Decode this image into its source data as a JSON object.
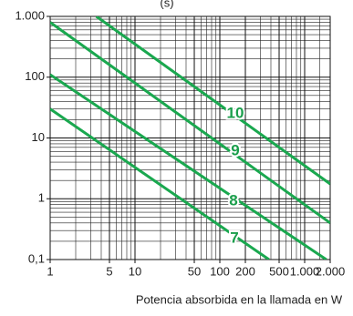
{
  "chart_data": {
    "type": "line",
    "ylabel": "(s)",
    "xlabel": "Potencia absorbida en la llamada en W",
    "log_x": true,
    "log_y": true,
    "grid": true,
    "xlim": [
      1,
      2000
    ],
    "ylim": [
      0.1,
      1000
    ],
    "xticks": [
      1,
      5,
      10,
      50,
      100,
      200,
      500,
      {
        "value": 1000,
        "label": "1.000"
      },
      {
        "value": 2000,
        "label": "2.000"
      }
    ],
    "yticks": [
      {
        "value": 0.1,
        "label": "0,1"
      },
      1,
      10,
      100,
      {
        "value": 1000,
        "label": "1.000"
      }
    ],
    "xgrid": [
      2,
      3,
      4,
      6,
      7,
      8,
      9,
      20,
      30,
      40,
      60,
      70,
      80,
      90,
      300,
      400,
      600,
      700,
      800,
      900,
      1500
    ],
    "ygrid": [
      0.2,
      0.3,
      0.4,
      0.5,
      0.6,
      0.7,
      0.8,
      0.9,
      2,
      3,
      4,
      5,
      6,
      7,
      8,
      9,
      20,
      30,
      40,
      50,
      60,
      70,
      80,
      90,
      200,
      300,
      400,
      500,
      600,
      700,
      800,
      900
    ],
    "series": [
      {
        "name": "10",
        "color": "#1aa84f",
        "x": [
          3.5,
          2000
        ],
        "values": [
          1000,
          1.75
        ]
      },
      {
        "name": "9",
        "color": "#1aa84f",
        "x": [
          1,
          2000
        ],
        "values": [
          800,
          0.4
        ]
      },
      {
        "name": "8",
        "color": "#1aa84f",
        "x": [
          1,
          1800
        ],
        "values": [
          110,
          0.1
        ]
      },
      {
        "name": "7",
        "color": "#1aa84f",
        "x": [
          1,
          380
        ],
        "values": [
          30,
          0.1
        ]
      }
    ]
  }
}
